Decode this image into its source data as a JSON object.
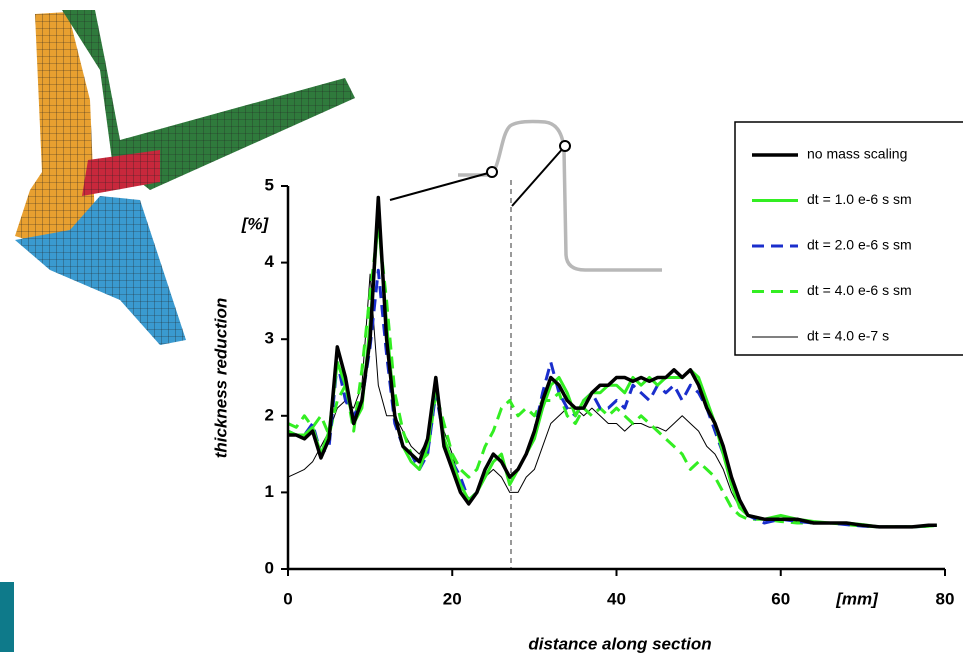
{
  "chart_data": {
    "type": "line",
    "xlabel": "distance along section",
    "ylabel": "thickness reduction",
    "xunit": "[mm]",
    "yunit": "[%]",
    "xlim": [
      0,
      80
    ],
    "xticks": [
      0,
      20,
      40,
      60,
      80
    ],
    "ylim": [
      0,
      5
    ],
    "yticks": [
      0,
      1,
      2,
      3,
      4,
      5
    ],
    "x": [
      0,
      1,
      2,
      3,
      4,
      5,
      6,
      7,
      8,
      9,
      10,
      11,
      12,
      13,
      14,
      15,
      16,
      17,
      18,
      19,
      20,
      21,
      22,
      23,
      24,
      25,
      26,
      27,
      28,
      29,
      30,
      31,
      32,
      33,
      34,
      35,
      36,
      37,
      38,
      39,
      40,
      41,
      42,
      43,
      44,
      45,
      46,
      47,
      48,
      49,
      50,
      51,
      52,
      53,
      54,
      55,
      56,
      58,
      60,
      62,
      64,
      66,
      68,
      70,
      72,
      74,
      76,
      78,
      79
    ],
    "series": [
      {
        "name": "no mass scaling",
        "color": "#000000",
        "width": 3.5,
        "dash": "solid",
        "values": [
          1.75,
          1.75,
          1.7,
          1.8,
          1.45,
          1.7,
          2.9,
          2.5,
          1.9,
          2.2,
          3.0,
          4.85,
          3.0,
          2.0,
          1.6,
          1.5,
          1.4,
          1.7,
          2.5,
          1.6,
          1.3,
          1.0,
          0.85,
          1.0,
          1.3,
          1.5,
          1.4,
          1.2,
          1.3,
          1.5,
          1.8,
          2.2,
          2.5,
          2.4,
          2.2,
          2.1,
          2.1,
          2.3,
          2.4,
          2.4,
          2.5,
          2.5,
          2.45,
          2.5,
          2.45,
          2.5,
          2.5,
          2.6,
          2.5,
          2.6,
          2.4,
          2.1,
          1.9,
          1.6,
          1.2,
          0.9,
          0.7,
          0.65,
          0.65,
          0.65,
          0.6,
          0.6,
          0.6,
          0.57,
          0.55,
          0.55,
          0.55,
          0.57,
          0.57
        ]
      },
      {
        "name": "dt = 1.0 e-6 s sm",
        "color": "#33ee22",
        "width": 3,
        "dash": "solid",
        "values": [
          1.8,
          1.75,
          1.75,
          1.85,
          1.5,
          1.8,
          2.7,
          2.4,
          1.9,
          2.1,
          3.2,
          4.6,
          3.2,
          2.0,
          1.6,
          1.4,
          1.3,
          1.6,
          2.4,
          1.7,
          1.4,
          1.1,
          0.9,
          1.0,
          1.2,
          1.4,
          1.5,
          1.1,
          1.3,
          1.5,
          1.7,
          2.1,
          2.4,
          2.5,
          2.3,
          2.0,
          2.2,
          2.3,
          2.3,
          2.4,
          2.4,
          2.3,
          2.5,
          2.4,
          2.5,
          2.4,
          2.5,
          2.5,
          2.5,
          2.6,
          2.5,
          2.2,
          1.9,
          1.5,
          1.1,
          0.8,
          0.7,
          0.65,
          0.7,
          0.65,
          0.62,
          0.6,
          0.6,
          0.58,
          0.55,
          0.55,
          0.55,
          0.56,
          0.57
        ]
      },
      {
        "name": "dt = 2.0 e-6 s sm",
        "color": "#1a2ecc",
        "width": 3,
        "dash": "dashed",
        "values": [
          1.8,
          1.75,
          1.75,
          1.9,
          1.5,
          1.6,
          2.7,
          2.2,
          2.0,
          2.2,
          2.9,
          3.9,
          2.8,
          1.9,
          1.6,
          1.5,
          1.3,
          1.5,
          2.3,
          1.7,
          1.4,
          1.2,
          0.9,
          1.0,
          1.3,
          1.5,
          1.4,
          1.2,
          1.3,
          1.5,
          1.8,
          2.3,
          2.7,
          2.3,
          2.1,
          2.0,
          2.2,
          2.3,
          2.1,
          2.1,
          2.2,
          2.1,
          2.4,
          2.3,
          2.2,
          2.4,
          2.3,
          2.4,
          2.2,
          2.4,
          2.3,
          2.1,
          1.8,
          1.5,
          1.2,
          0.9,
          0.7,
          0.6,
          0.65,
          0.62,
          0.6,
          0.6,
          0.58,
          0.56,
          0.55,
          0.55,
          0.55,
          0.56,
          0.57
        ]
      },
      {
        "name": "dt = 4.0 e-6 s sm",
        "color": "#33ee22",
        "width": 3,
        "dash": "dashed",
        "values": [
          1.9,
          1.85,
          2.0,
          1.85,
          2.0,
          1.75,
          2.2,
          2.4,
          1.8,
          2.6,
          3.6,
          4.5,
          3.5,
          2.3,
          1.8,
          1.5,
          1.4,
          1.5,
          2.3,
          1.9,
          1.5,
          1.3,
          1.2,
          1.3,
          1.6,
          1.8,
          2.1,
          2.2,
          2.0,
          2.1,
          2.0,
          2.2,
          2.2,
          2.3,
          2.0,
          1.9,
          2.1,
          2.0,
          2.1,
          2.0,
          2.1,
          2.0,
          1.9,
          2.0,
          1.9,
          1.8,
          1.7,
          1.6,
          1.5,
          1.3,
          1.4,
          1.3,
          1.2,
          1.0,
          0.8,
          0.7,
          0.65,
          0.65,
          0.62,
          0.6,
          0.6,
          0.6,
          0.58,
          0.56,
          0.55,
          0.55,
          0.55,
          0.56,
          0.57
        ]
      },
      {
        "name": "dt = 4.0 e-7 s",
        "color": "#000000",
        "width": 1,
        "dash": "solid",
        "values": [
          1.2,
          1.25,
          1.3,
          1.4,
          1.6,
          1.8,
          2.1,
          2.2,
          2.1,
          2.4,
          3.85,
          2.4,
          2.0,
          2.0,
          1.8,
          1.6,
          1.5,
          1.7,
          2.3,
          1.8,
          1.5,
          1.1,
          0.9,
          1.0,
          1.2,
          1.3,
          1.2,
          1.0,
          1.0,
          1.2,
          1.3,
          1.6,
          1.9,
          2.0,
          2.1,
          2.1,
          2.0,
          2.1,
          2.0,
          1.9,
          1.9,
          1.8,
          1.9,
          1.9,
          1.85,
          1.85,
          1.8,
          1.9,
          2.0,
          1.9,
          1.8,
          1.6,
          1.5,
          1.3,
          1.0,
          0.8,
          0.7,
          0.65,
          0.65,
          0.62,
          0.6,
          0.6,
          0.58,
          0.56,
          0.55,
          0.55,
          0.55,
          0.56,
          0.57
        ]
      }
    ]
  }
}
